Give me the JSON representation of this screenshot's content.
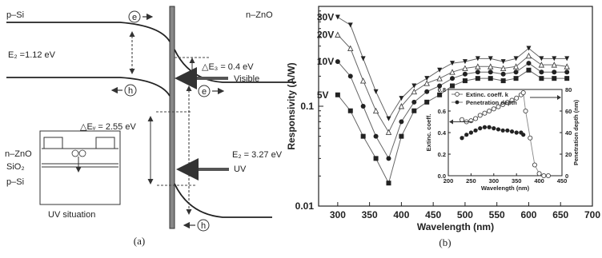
{
  "panel_a": {
    "p_si": "p–Si",
    "n_zno": "n–ZnO",
    "eg_si": "E₂ =1.12 eV",
    "delta_ec": "△E₃ = 0.4 eV",
    "visible": "Visible",
    "delta_ev": "△Eᵥ = 2.55 eV",
    "eg_zno": "E₂ = 3.27 eV",
    "uv": "UV",
    "inset_nzno": "n–ZnO",
    "inset_sio2": "SiO₂",
    "inset_psi": "p–Si",
    "uv_situation": "UV situation",
    "carrier_e": "e",
    "carrier_h": "h",
    "caption": "(a)"
  },
  "panel_b": {
    "caption": "(b)",
    "voltage_labels": [
      "30V",
      "20V",
      "10V",
      "5V"
    ],
    "inset_legend": [
      "Extinc. coeff. k",
      "Penetration depth"
    ],
    "chart_data": [
      {
        "type": "line",
        "xlabel": "Wavelength (nm)",
        "ylabel": "Responsivity (A/W)",
        "yscale": "log",
        "xlim": [
          270,
          700
        ],
        "ylim": [
          0.01,
          1.0
        ],
        "x_ticks": [
          "300",
          "350",
          "400",
          "450",
          "500",
          "550",
          "600",
          "650",
          "700"
        ],
        "y_ticks": [
          "0.01",
          "0.1"
        ],
        "x": [
          300,
          320,
          340,
          360,
          380,
          400,
          420,
          440,
          460,
          480,
          500,
          520,
          540,
          560,
          580,
          600,
          620,
          640,
          660
        ],
        "series": [
          {
            "name": "30V",
            "marker": "triangle-down",
            "values": [
              0.78,
              0.65,
              0.3,
              0.14,
              0.075,
              0.12,
              0.16,
              0.19,
              0.23,
              0.27,
              0.28,
              0.3,
              0.3,
              0.28,
              0.3,
              0.38,
              0.3,
              0.3,
              0.3
            ]
          },
          {
            "name": "20V",
            "marker": "triangle-up",
            "values": [
              0.52,
              0.38,
              0.18,
              0.09,
              0.055,
              0.1,
              0.14,
              0.17,
              0.19,
              0.22,
              0.24,
              0.25,
              0.25,
              0.24,
              0.25,
              0.32,
              0.26,
              0.26,
              0.25
            ]
          },
          {
            "name": "10V",
            "marker": "circle",
            "values": [
              0.28,
              0.2,
              0.1,
              0.05,
              0.03,
              0.07,
              0.11,
              0.14,
              0.16,
              0.19,
              0.21,
              0.22,
              0.22,
              0.21,
              0.22,
              0.27,
              0.22,
              0.22,
              0.22
            ]
          },
          {
            "name": "5V",
            "marker": "square",
            "values": [
              0.13,
              0.09,
              0.05,
              0.03,
              0.017,
              0.05,
              0.09,
              0.11,
              0.13,
              0.16,
              0.18,
              0.19,
              0.19,
              0.18,
              0.19,
              0.23,
              0.19,
              0.19,
              0.19
            ]
          }
        ]
      },
      {
        "type": "line",
        "xlabel": "Wavelength (nm)",
        "ylabel": "Extinc. coeff.",
        "y2label": "Penetration depth (nm)",
        "xlim": [
          200,
          450
        ],
        "ylim": [
          0.0,
          0.8
        ],
        "y2lim": [
          0,
          80
        ],
        "x_ticks": [
          "200",
          "250",
          "300",
          "350",
          "400",
          "450"
        ],
        "y_ticks": [
          "0.0",
          "0.2",
          "0.4",
          "0.6",
          "0.8"
        ],
        "y2_ticks": [
          "0",
          "20",
          "40",
          "60",
          "80"
        ],
        "series": [
          {
            "name": "Extinc. coeff. k",
            "marker": "open-circle",
            "x": [
              230,
              240,
              250,
              260,
              270,
              280,
              290,
              300,
              310,
              320,
              330,
              340,
              350,
              360,
              365,
              370,
              380,
              390,
              400,
              410,
              420
            ],
            "values": [
              0.52,
              0.5,
              0.51,
              0.53,
              0.56,
              0.58,
              0.6,
              0.62,
              0.64,
              0.66,
              0.68,
              0.7,
              0.72,
              0.75,
              0.77,
              0.6,
              0.35,
              0.1,
              0.02,
              0.0,
              0.0
            ]
          },
          {
            "name": "Penetration depth",
            "marker": "filled-circle",
            "axis": "right",
            "x": [
              230,
              240,
              250,
              260,
              270,
              280,
              290,
              300,
              310,
              320,
              330,
              340,
              350,
              360,
              365
            ],
            "values": [
              35,
              38,
              40,
              42,
              44,
              45,
              45,
              44,
              43,
              42,
              42,
              41,
              40,
              40,
              38
            ]
          }
        ]
      }
    ]
  }
}
